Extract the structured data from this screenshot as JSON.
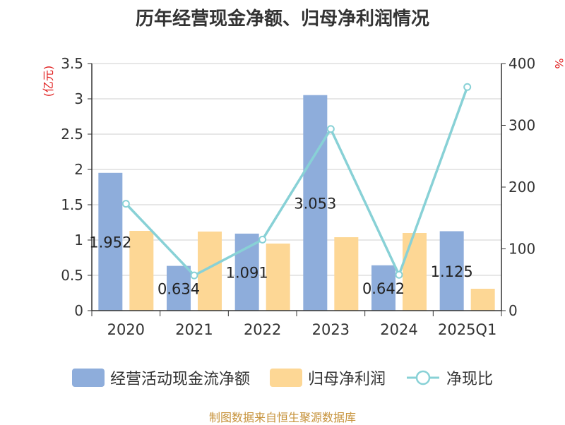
{
  "chart_data": {
    "type": "bar",
    "title": "历年经营现金净额、归母净利润情况",
    "categories": [
      "2020",
      "2021",
      "2022",
      "2023",
      "2024",
      "2025Q1"
    ],
    "y_left": {
      "label": "(亿元)",
      "ylim": [
        0,
        3.5
      ],
      "ticks": [
        "0",
        "0.5",
        "1",
        "1.5",
        "2",
        "2.5",
        "3",
        "3.5"
      ]
    },
    "y_right": {
      "label": "%",
      "ylim": [
        0,
        400
      ],
      "ticks": [
        "0",
        "100",
        "200",
        "300",
        "400"
      ]
    },
    "series": [
      {
        "name": "经营活动现金流净额",
        "type": "bar",
        "axis": "left",
        "color": "#8eaddb",
        "values": [
          1.952,
          0.634,
          1.091,
          3.053,
          0.642,
          1.125
        ],
        "labels": [
          "1.952",
          "0.634",
          "1.091",
          "3.053",
          "0.642",
          "1.125"
        ]
      },
      {
        "name": "归母净利润",
        "type": "bar",
        "axis": "left",
        "color": "#fdd795",
        "values": [
          1.13,
          1.12,
          0.95,
          1.04,
          1.1,
          0.31
        ]
      },
      {
        "name": "净现比",
        "type": "line",
        "axis": "right",
        "color": "#88d1d6",
        "values": [
          173,
          57,
          115,
          294,
          58,
          362
        ]
      }
    ],
    "grid": true,
    "legend": "bottom"
  },
  "footer": "制图数据来自恒生聚源数据库"
}
